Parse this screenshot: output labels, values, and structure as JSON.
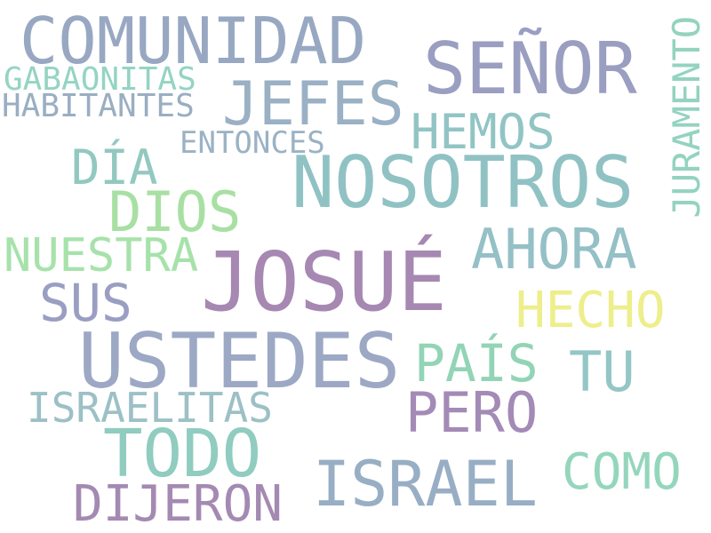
{
  "words": {
    "comunidad": "COMUNIDAD",
    "senor": "SEÑOR",
    "juramento": "JURAMENTO",
    "gabaonitas": "GABAONITAS",
    "habitantes": "HABITANTES",
    "jefes": "JEFES",
    "hemos": "HEMOS",
    "entonces": "ENTONCES",
    "nosotros": "NOSOTROS",
    "dia": "DÍA",
    "dios": "DIOS",
    "nuestra": "NUESTRA",
    "ahora": "AHORA",
    "josue": "JOSUÉ",
    "sus": "SUS",
    "hecho": "HECHO",
    "ustedes": "USTEDES",
    "pais": "PAÍS",
    "tu": "TU",
    "israelitas": "ISRAELITAS",
    "pero": "PERO",
    "todo": "TODO",
    "israel": "ISRAEL",
    "como": "COMO",
    "dijeron": "DIJERON"
  },
  "colors": {
    "background": "#ffffff",
    "purple": "#a688b2",
    "blue_gray": "#98a8c2",
    "teal": "#90c2c4",
    "mint": "#94d4c2",
    "green": "#a8e0a4",
    "yellow": "#eeee8c"
  }
}
